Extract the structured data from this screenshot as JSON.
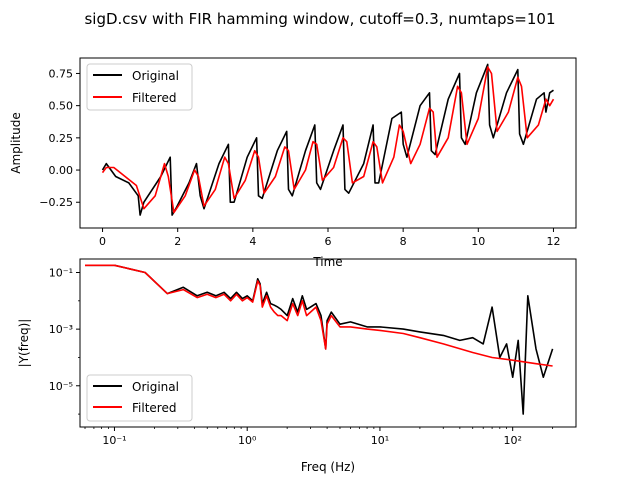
{
  "figure": {
    "suptitle": "sigD.csv with FIR hamming window, cutoff=0.3, numtaps=101"
  },
  "colors": {
    "original": "#000000",
    "filtered": "#ff0000",
    "axes": "#000000",
    "background": "#ffffff"
  },
  "chart_data": [
    {
      "type": "line",
      "title": "",
      "xlabel": "Time",
      "ylabel": "Amplitude",
      "xlim": [
        -0.6,
        12.6
      ],
      "ylim": [
        -0.45,
        0.87
      ],
      "xticks": [
        0,
        2,
        4,
        6,
        8,
        10,
        12
      ],
      "yticks": [
        -0.25,
        0.0,
        0.25,
        0.5,
        0.75
      ],
      "ytick_labels": [
        "−0.25",
        "0.00",
        "0.25",
        "0.50",
        "0.75"
      ],
      "grid": false,
      "legend_position": "upper-left",
      "series": [
        {
          "name": "Original",
          "color": "#000000",
          "x": [
            0.0,
            0.1,
            0.35,
            0.7,
            0.95,
            1.0,
            1.1,
            1.55,
            1.8,
            1.85,
            1.95,
            2.3,
            2.5,
            2.6,
            2.7,
            3.1,
            3.35,
            3.4,
            3.5,
            3.85,
            4.1,
            4.15,
            4.25,
            4.65,
            4.9,
            4.95,
            5.05,
            5.4,
            5.65,
            5.7,
            5.8,
            6.15,
            6.4,
            6.45,
            6.55,
            6.95,
            7.2,
            7.25,
            7.35,
            7.7,
            7.95,
            8.0,
            8.1,
            8.45,
            8.7,
            8.75,
            8.85,
            9.2,
            9.5,
            9.55,
            9.65,
            9.95,
            10.25,
            10.3,
            10.4,
            10.75,
            11.05,
            11.1,
            11.2,
            11.55,
            11.75,
            11.8,
            11.9,
            12.0
          ],
          "y": [
            0.0,
            0.05,
            -0.05,
            -0.1,
            -0.2,
            -0.35,
            -0.25,
            -0.05,
            0.1,
            -0.35,
            -0.3,
            -0.1,
            0.05,
            -0.2,
            -0.3,
            0.05,
            0.2,
            -0.25,
            -0.25,
            0.1,
            0.25,
            -0.2,
            -0.22,
            0.15,
            0.3,
            -0.15,
            -0.2,
            0.15,
            0.35,
            -0.1,
            -0.15,
            0.15,
            0.35,
            -0.15,
            -0.18,
            0.05,
            0.35,
            -0.1,
            -0.1,
            0.4,
            0.45,
            0.2,
            0.1,
            0.5,
            0.6,
            0.15,
            0.12,
            0.55,
            0.75,
            0.25,
            0.2,
            0.6,
            0.82,
            0.35,
            0.25,
            0.6,
            0.78,
            0.28,
            0.2,
            0.55,
            0.6,
            0.45,
            0.6,
            0.62
          ]
        },
        {
          "name": "Filtered",
          "color": "#ff0000",
          "x": [
            0.0,
            0.1,
            0.3,
            0.6,
            0.9,
            1.1,
            1.4,
            1.65,
            1.75,
            1.9,
            2.2,
            2.45,
            2.55,
            2.7,
            3.0,
            3.25,
            3.35,
            3.5,
            3.8,
            4.05,
            4.15,
            4.3,
            4.6,
            4.85,
            4.95,
            5.1,
            5.4,
            5.6,
            5.7,
            5.85,
            6.15,
            6.4,
            6.5,
            6.65,
            6.95,
            7.2,
            7.3,
            7.45,
            7.75,
            7.9,
            8.0,
            8.2,
            8.45,
            8.7,
            8.8,
            8.9,
            9.2,
            9.45,
            9.55,
            9.7,
            10.0,
            10.25,
            10.35,
            10.5,
            10.8,
            11.05,
            11.15,
            11.3,
            11.6,
            11.8,
            11.9,
            12.0
          ],
          "y": [
            -0.02,
            0.02,
            0.02,
            -0.05,
            -0.12,
            -0.3,
            -0.2,
            0.05,
            -0.05,
            -0.33,
            -0.2,
            0.0,
            -0.05,
            -0.28,
            -0.15,
            0.1,
            0.05,
            -0.22,
            -0.08,
            0.15,
            0.1,
            -0.18,
            -0.05,
            0.18,
            0.15,
            -0.15,
            0.0,
            0.22,
            0.2,
            -0.08,
            0.02,
            0.25,
            0.22,
            -0.1,
            -0.05,
            0.22,
            0.18,
            -0.1,
            0.1,
            0.35,
            0.3,
            0.05,
            0.2,
            0.48,
            0.45,
            0.1,
            0.25,
            0.65,
            0.6,
            0.2,
            0.4,
            0.8,
            0.75,
            0.3,
            0.45,
            0.72,
            0.65,
            0.25,
            0.35,
            0.55,
            0.5,
            0.55
          ]
        }
      ]
    },
    {
      "type": "line",
      "title": "",
      "xlabel": "Freq (Hz)",
      "ylabel": "|Y(freq)|",
      "xscale": "log",
      "yscale": "log",
      "xlim": [
        0.055,
        300
      ],
      "ylim": [
        3.5e-07,
        0.3
      ],
      "xticks": [
        0.1,
        1,
        10,
        100
      ],
      "xtick_labels": [
        "10⁻¹",
        "10⁰",
        "10¹",
        "10²"
      ],
      "yticks": [
        1e-05,
        0.001,
        0.1
      ],
      "ytick_labels": [
        "10⁻⁵",
        "10⁻³",
        "10⁻¹"
      ],
      "grid": false,
      "legend_position": "lower-left",
      "series": [
        {
          "name": "Original",
          "color": "#000000",
          "x": [
            0.06,
            0.1,
            0.17,
            0.25,
            0.33,
            0.42,
            0.5,
            0.58,
            0.67,
            0.75,
            0.83,
            0.92,
            1.0,
            1.1,
            1.2,
            1.25,
            1.3,
            1.4,
            1.5,
            1.6,
            1.7,
            1.8,
            2.0,
            2.2,
            2.4,
            2.6,
            2.8,
            3.0,
            3.3,
            3.6,
            3.9,
            4.0,
            4.3,
            5.0,
            6.0,
            8.0,
            10.0,
            15.0,
            20.0,
            30.0,
            40.0,
            50.0,
            60.0,
            70.0,
            80.0,
            90.0,
            100.0,
            110.0,
            120.0,
            130.0,
            150.0,
            170.0,
            200.0
          ],
          "y": [
            0.18,
            0.18,
            0.1,
            0.018,
            0.03,
            0.015,
            0.02,
            0.015,
            0.02,
            0.012,
            0.02,
            0.012,
            0.015,
            0.01,
            0.06,
            0.04,
            0.008,
            0.02,
            0.008,
            0.007,
            0.006,
            0.005,
            0.003,
            0.012,
            0.004,
            0.015,
            0.005,
            0.006,
            0.008,
            0.003,
            0.0002,
            0.002,
            0.004,
            0.0015,
            0.0018,
            0.0012,
            0.0012,
            0.001,
            0.0008,
            0.0006,
            0.0004,
            0.0005,
            0.0003,
            0.006,
            0.0001,
            0.0003,
            2e-05,
            0.0004,
            1e-06,
            0.015,
            0.0002,
            2e-05,
            0.0002
          ]
        },
        {
          "name": "Filtered",
          "color": "#ff0000",
          "x": [
            0.06,
            0.1,
            0.17,
            0.25,
            0.33,
            0.42,
            0.5,
            0.58,
            0.67,
            0.75,
            0.83,
            0.92,
            1.0,
            1.1,
            1.2,
            1.25,
            1.3,
            1.4,
            1.5,
            1.6,
            1.7,
            1.8,
            2.0,
            2.2,
            2.4,
            2.6,
            2.8,
            3.0,
            3.3,
            3.6,
            3.9,
            4.0,
            4.3,
            5.0,
            6.0,
            8.0,
            10.0,
            15.0,
            20.0,
            30.0,
            50.0,
            70.0,
            100.0,
            150.0,
            200.0
          ],
          "y": [
            0.18,
            0.18,
            0.1,
            0.018,
            0.025,
            0.013,
            0.017,
            0.013,
            0.017,
            0.01,
            0.017,
            0.01,
            0.013,
            0.009,
            0.05,
            0.035,
            0.006,
            0.015,
            0.006,
            0.004,
            0.003,
            0.003,
            0.002,
            0.008,
            0.003,
            0.01,
            0.003,
            0.004,
            0.006,
            0.002,
            0.0002,
            0.0015,
            0.003,
            0.0012,
            0.0012,
            0.001,
            0.0009,
            0.0007,
            0.0005,
            0.0003,
            0.00015,
            0.0001,
            8e-05,
            6e-05,
            5e-05
          ]
        }
      ]
    }
  ]
}
